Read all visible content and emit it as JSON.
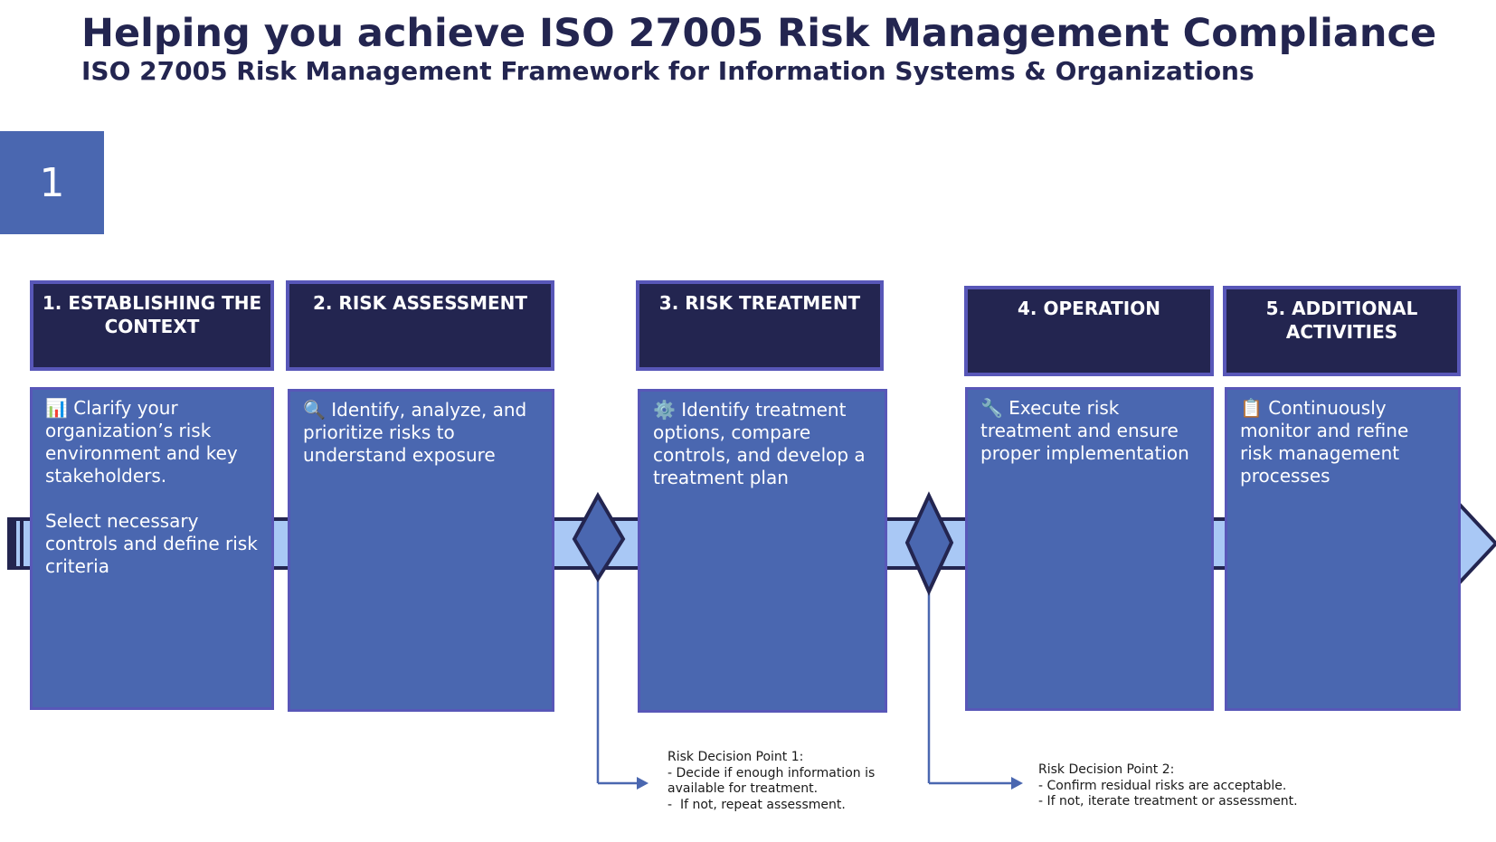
{
  "header": {
    "title": "Helping you achieve ISO 27005 Risk Management Compliance",
    "subtitle": "ISO 27005 Risk Management Framework for Information Systems & Organizations"
  },
  "slide_number": "1",
  "colors": {
    "navy": "#232550",
    "card_blue": "#4a67b0",
    "border_purple": "#5857b8",
    "arrow_light": "#a9c8f5"
  },
  "stages": [
    {
      "title": "1. ESTABLISHING THE CONTEXT",
      "icon": "bar-chart-icon",
      "body": "📊 Clarify your organization’s risk environment and key stakeholders.\n\nSelect necessary controls and define risk criteria"
    },
    {
      "title": "2. RISK ASSESSMENT",
      "icon": "magnifier-icon",
      "body": "🔍 Identify, analyze, and prioritize risks to understand exposure"
    },
    {
      "title": "3. RISK TREATMENT",
      "icon": "gear-icon",
      "body": "⚙️ Identify treatment options, compare controls, and develop a treatment plan"
    },
    {
      "title": "4. OPERATION",
      "icon": "wrench-icon",
      "body": "🔧 Execute risk treatment and ensure proper implementation"
    },
    {
      "title": "5. ADDITIONAL ACTIVITIES",
      "icon": "clipboard-icon",
      "body": "📋 Continuously monitor and refine risk management processes"
    }
  ],
  "decision_points": [
    {
      "text": "Risk Decision Point 1:\n- Decide if enough information is\navailable for treatment.\n-  If not, repeat assessment."
    },
    {
      "text": "Risk Decision Point 2:\n- Confirm residual risks are acceptable.\n- If not, iterate treatment or assessment."
    }
  ]
}
